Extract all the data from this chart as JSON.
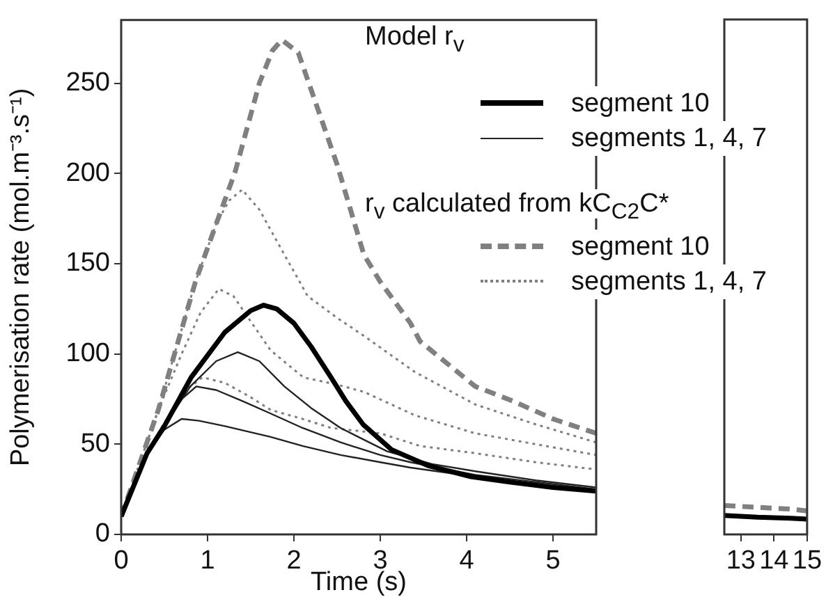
{
  "chart_data": [
    {
      "type": "line",
      "xlabel": "Time (s)",
      "ylabel": "Polymerisation rate (mol.m⁻³.s⁻¹)",
      "xlim": [
        0,
        5.5
      ],
      "xticks": [
        0,
        1,
        2,
        3,
        4,
        5
      ],
      "ylim": [
        0,
        285
      ],
      "yticks": [
        0,
        50,
        100,
        150,
        200,
        250
      ],
      "grid": false,
      "legend": "top right",
      "marker": "none",
      "annotations": [
        "Model r$_{v}$",
        "r$_{v}$ calculated from kC$_{C2}$C*"
      ],
      "series": [
        {
          "name": "segment 10",
          "color": "#000000",
          "line_style": "solid",
          "x": [
            0,
            0.3,
            0.5,
            0.81,
            1.2,
            1.5,
            1.65,
            1.8,
            2.0,
            2.2,
            2.43,
            2.6,
            2.8,
            3.13,
            3.56,
            4.05,
            4.5,
            5.0,
            5.5
          ],
          "values": [
            10,
            45,
            60,
            87,
            112,
            124,
            127,
            125,
            117,
            104,
            87,
            74,
            61,
            47,
            38,
            32,
            29,
            26,
            24
          ]
        },
        {
          "name": "segments 1, 4, 7",
          "color": "#222222",
          "line_style": "solid",
          "x": [
            0,
            0.3,
            0.5,
            0.8,
            1.1,
            1.35,
            1.6,
            1.89,
            2.2,
            2.54,
            3.08,
            3.6,
            4.1,
            4.8,
            5.5
          ],
          "values": [
            12,
            45,
            60,
            82,
            96,
            101,
            96,
            82,
            70,
            59,
            46,
            39,
            35,
            30,
            26
          ]
        },
        {
          "color": "#222222",
          "line_style": "solid",
          "x": [
            0,
            0.3,
            0.5,
            0.7,
            0.87,
            1.1,
            1.4,
            1.73,
            2.1,
            2.54,
            3.0,
            3.35,
            4.1,
            4.8,
            5.5
          ],
          "values": [
            12,
            45,
            60,
            75,
            82,
            80,
            74,
            67,
            59,
            51,
            44,
            40,
            33,
            29,
            25
          ]
        },
        {
          "color": "#222222",
          "line_style": "solid",
          "x": [
            0,
            0.3,
            0.5,
            0.7,
            0.9,
            1.2,
            1.73,
            2.1,
            2.54,
            3.0,
            3.35,
            4.1,
            4.8,
            5.5
          ],
          "values": [
            12,
            45,
            58,
            64,
            63,
            60,
            54,
            49,
            44,
            40,
            37,
            32,
            28,
            24
          ]
        },
        {
          "name": "segment 10",
          "color": "#808080",
          "line_style": "dashed",
          "x": [
            0,
            0.43,
            0.86,
            1.1,
            1.32,
            1.6,
            1.75,
            1.86,
            2.05,
            2.5,
            2.81,
            3.0,
            3.35,
            3.46,
            4.1,
            4.53,
            5.0,
            5.5
          ],
          "values": [
            10,
            69,
            140,
            172,
            201,
            250,
            268,
            274,
            267,
            205,
            155,
            140,
            117,
            107,
            82,
            74,
            64,
            56
          ]
        },
        {
          "name": "segments 1, 4, 7",
          "color": "#808080",
          "line_style": "dotted",
          "x": [
            0,
            0.43,
            0.86,
            1.1,
            1.25,
            1.4,
            1.6,
            1.89,
            2.16,
            2.5,
            2.81,
            3.4,
            4.1,
            4.8,
            5.5
          ],
          "values": [
            10,
            69,
            140,
            172,
            185,
            191,
            180,
            155,
            132,
            120,
            110,
            90,
            72,
            61,
            51
          ]
        },
        {
          "color": "#808080",
          "line_style": "dotted",
          "x": [
            0,
            0.43,
            0.7,
            0.92,
            1.13,
            1.3,
            1.5,
            1.73,
            2.11,
            2.5,
            2.81,
            3.4,
            4.1,
            4.8,
            5.5
          ],
          "values": [
            10,
            69,
            100,
            123,
            136,
            132,
            118,
            102,
            87,
            83,
            79,
            66,
            56,
            50,
            44
          ]
        },
        {
          "color": "#808080",
          "line_style": "dotted",
          "x": [
            0,
            0.3,
            0.5,
            0.75,
            0.94,
            1.2,
            1.5,
            1.73,
            2.1,
            2.43,
            3.0,
            3.46,
            4.1,
            4.8,
            5.5
          ],
          "values": [
            10,
            45,
            62,
            80,
            87,
            84,
            76,
            69,
            64,
            59,
            56,
            49,
            45,
            40,
            36
          ]
        }
      ]
    },
    {
      "type": "line",
      "xlim": [
        12.5,
        15
      ],
      "xticks": [
        13,
        14,
        15
      ],
      "ylim": [
        0,
        285
      ],
      "tick_labels": "x",
      "grid": false,
      "legend": false,
      "marker": "none",
      "series": [
        {
          "color": "#000000",
          "line_style": "solid",
          "x": [
            12.5,
            13.5,
            14.5,
            15
          ],
          "values": [
            10.5,
            9.5,
            9,
            8.5
          ]
        },
        {
          "color": "#808080",
          "line_style": "dashed",
          "x": [
            12.5,
            13.5,
            14.5,
            15
          ],
          "values": [
            16,
            15,
            14,
            13
          ]
        }
      ]
    }
  ]
}
